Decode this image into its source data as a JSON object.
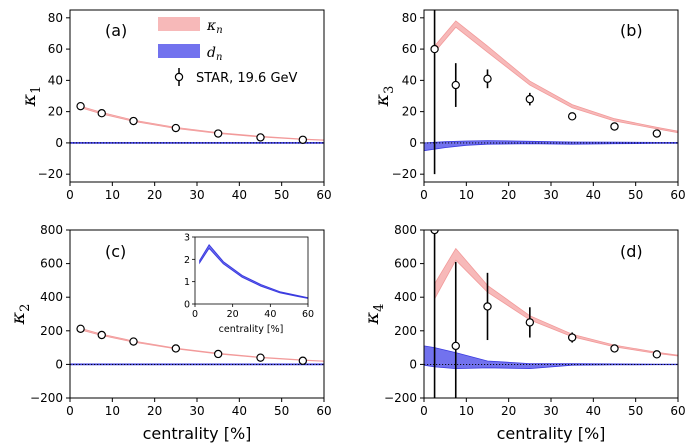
{
  "legend": {
    "kappa_label": "κ",
    "kappa_sub": "n",
    "d_label": "d",
    "d_sub": "n",
    "star_label": "STAR, 19.6 GeV"
  },
  "colors": {
    "kappa_band": "#f7b9b9",
    "kappa_line": "#f29a9a",
    "d_band": "#7272ee",
    "d_line": "#3b3be0",
    "marker_edge": "#000000",
    "marker_face": "#ffffff"
  },
  "chart_data": [
    {
      "type": "line",
      "panel_label": "(a)",
      "ylabel": "κ",
      "ylabel_sub": "1",
      "xlabel": "",
      "xlim": [
        0,
        60
      ],
      "ylim": [
        -25,
        85
      ],
      "xticks": [
        "0",
        "10",
        "20",
        "30",
        "40",
        "50",
        "60"
      ],
      "yticks": [
        "−20",
        "0",
        "20",
        "40",
        "60",
        "80"
      ],
      "ytick_values": [
        -20,
        0,
        20,
        40,
        60,
        80
      ],
      "zero_line": true,
      "kappa_band": {
        "x": [
          2.5,
          7.5,
          15,
          25,
          35,
          45,
          55,
          60
        ],
        "lower": [
          22.5,
          18.5,
          13.8,
          9.2,
          6.0,
          3.8,
          2.2,
          1.6
        ],
        "upper": [
          23.5,
          19.5,
          14.6,
          9.9,
          6.6,
          4.2,
          2.5,
          1.9
        ]
      },
      "d_band": {
        "x": [
          0,
          60
        ],
        "lower": [
          -0.3,
          -0.3
        ],
        "upper": [
          0.3,
          0.3
        ]
      },
      "star": {
        "x": [
          2.5,
          7.5,
          15,
          25,
          35,
          45,
          55
        ],
        "y": [
          23.5,
          19,
          14,
          9.5,
          6,
          3.5,
          2
        ],
        "err": [
          0.5,
          0.5,
          0.5,
          0.5,
          0.4,
          0.4,
          0.4
        ]
      }
    },
    {
      "type": "line",
      "panel_label": "(b)",
      "ylabel": "κ",
      "ylabel_sub": "3",
      "xlabel": "",
      "xlim": [
        0,
        60
      ],
      "ylim": [
        -25,
        85
      ],
      "xticks": [
        "0",
        "10",
        "20",
        "30",
        "40",
        "50",
        "60"
      ],
      "yticks": [
        "−20",
        "0",
        "20",
        "40",
        "60",
        "80"
      ],
      "ytick_values": [
        -20,
        0,
        20,
        40,
        60,
        80
      ],
      "zero_line": true,
      "kappa_band": {
        "x": [
          2.5,
          7.5,
          15,
          25,
          35,
          45,
          55,
          60
        ],
        "lower": [
          58,
          74,
          58,
          37,
          22.5,
          14,
          9,
          6.5
        ],
        "upper": [
          62,
          78,
          62,
          39.5,
          24.5,
          15.5,
          10,
          7.5
        ]
      },
      "d_band": {
        "x": [
          0,
          5,
          10,
          15,
          25,
          35,
          45,
          55,
          60
        ],
        "lower": [
          -5,
          -3,
          -1.5,
          -0.8,
          -0.5,
          -0.8,
          -0.5,
          -0.3,
          -0.3
        ],
        "upper": [
          0,
          0.8,
          1.2,
          1.5,
          1.0,
          0.6,
          0.5,
          0.3,
          0.3
        ]
      },
      "star": {
        "x": [
          2.5,
          7.5,
          15,
          25,
          35,
          45,
          55
        ],
        "y": [
          60,
          37,
          41,
          28,
          17,
          10.5,
          6
        ],
        "err": [
          80,
          14,
          6,
          4,
          1.5,
          1.2,
          1
        ]
      }
    },
    {
      "type": "line",
      "panel_label": "(c)",
      "ylabel": "κ",
      "ylabel_sub": "2",
      "xlabel": "centrality [%]",
      "xlim": [
        0,
        60
      ],
      "ylim": [
        -200,
        800
      ],
      "xticks": [
        "0",
        "10",
        "20",
        "30",
        "40",
        "50",
        "60"
      ],
      "yticks": [
        "−200",
        "0",
        "200",
        "400",
        "600",
        "800"
      ],
      "ytick_values": [
        -200,
        0,
        200,
        400,
        600,
        800
      ],
      "zero_line": true,
      "kappa_band": {
        "x": [
          2.5,
          7.5,
          15,
          25,
          35,
          45,
          55,
          60
        ],
        "lower": [
          205,
          172,
          133,
          92,
          62,
          40,
          24,
          18
        ],
        "upper": [
          215,
          180,
          139,
          97,
          66,
          43,
          27,
          20
        ]
      },
      "d_band": {
        "x": [
          0,
          60
        ],
        "lower": [
          -3,
          -3
        ],
        "upper": [
          3,
          3
        ]
      },
      "star": {
        "x": [
          2.5,
          7.5,
          15,
          25,
          35,
          45,
          55
        ],
        "y": [
          212,
          175,
          136,
          95,
          62,
          40,
          22
        ],
        "err": [
          4,
          4,
          3,
          3,
          2,
          2,
          2
        ]
      },
      "inset": {
        "type": "line",
        "xlabel": "centrality [%]",
        "xlim": [
          0,
          60
        ],
        "ylim": [
          0,
          3
        ],
        "xticks": [
          "0",
          "20",
          "40",
          "60"
        ],
        "yticks": [
          "0",
          "1",
          "2",
          "3"
        ],
        "x": [
          2.5,
          7.5,
          15,
          25,
          35,
          45,
          55,
          60
        ],
        "lower": [
          1.85,
          2.5,
          1.8,
          1.2,
          0.8,
          0.5,
          0.33,
          0.25
        ],
        "upper": [
          1.95,
          2.65,
          1.9,
          1.28,
          0.87,
          0.55,
          0.37,
          0.28
        ]
      }
    },
    {
      "type": "line",
      "panel_label": "(d)",
      "ylabel": "κ",
      "ylabel_sub": "4",
      "xlabel": "centrality [%]",
      "xlim": [
        0,
        60
      ],
      "ylim": [
        -200,
        800
      ],
      "xticks": [
        "0",
        "10",
        "20",
        "30",
        "40",
        "50",
        "60"
      ],
      "yticks": [
        "−200",
        "0",
        "200",
        "400",
        "600",
        "800"
      ],
      "ytick_values": [
        -200,
        0,
        200,
        400,
        600,
        800
      ],
      "zero_line": true,
      "kappa_band": {
        "x": [
          2.5,
          7.5,
          15,
          25,
          35,
          45,
          55,
          60
        ],
        "lower": [
          390,
          620,
          430,
          265,
          165,
          105,
          65,
          50
        ],
        "upper": [
          480,
          690,
          470,
          290,
          180,
          115,
          72,
          55
        ]
      },
      "d_band": {
        "x": [
          0,
          2.5,
          7.5,
          15,
          25,
          35,
          45,
          55,
          60
        ],
        "lower": [
          -5,
          -15,
          -25,
          -20,
          -25,
          -5,
          -3,
          -2,
          -2
        ],
        "upper": [
          110,
          100,
          70,
          20,
          5,
          5,
          3,
          2,
          2
        ]
      },
      "star": {
        "x": [
          2.5,
          7.5,
          15,
          25,
          35,
          45,
          55
        ],
        "y": [
          800,
          110,
          345,
          250,
          160,
          95,
          60
        ],
        "err": [
          1100,
          500,
          200,
          90,
          30,
          15,
          10
        ]
      }
    }
  ]
}
